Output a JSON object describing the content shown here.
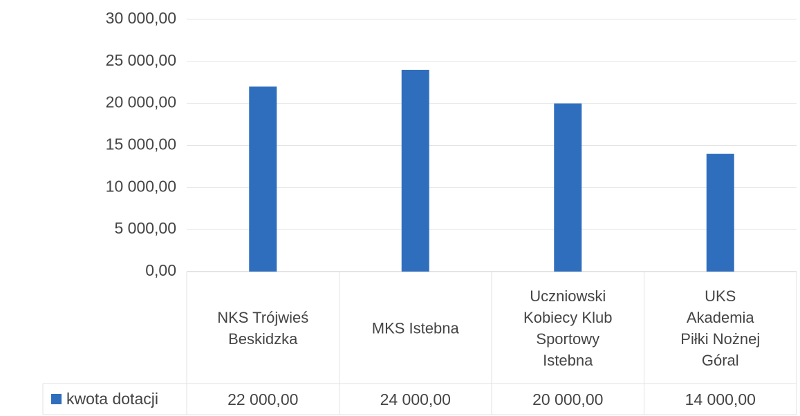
{
  "chart_data": {
    "type": "bar",
    "categories": [
      "NKS Trójwieś Beskidzka",
      "MKS Istebna",
      "Uczniowski Kobiecy Klub Sportowy Istebna",
      "UKS Akademia Piłki Nożnej Góral"
    ],
    "series": [
      {
        "name": "kwota dotacji",
        "color": "#2f6ebd",
        "values": [
          22000,
          24000,
          20000,
          14000
        ],
        "value_labels": [
          "22 000,00",
          "24 000,00",
          "20 000,00",
          "14 000,00"
        ]
      }
    ],
    "ylim": [
      0,
      30000
    ],
    "yticks": [
      {
        "value": 0,
        "label": "0,00"
      },
      {
        "value": 5000,
        "label": "5 000,00"
      },
      {
        "value": 10000,
        "label": "10 000,00"
      },
      {
        "value": 15000,
        "label": "15 000,00"
      },
      {
        "value": 20000,
        "label": "20 000,00"
      },
      {
        "value": 25000,
        "label": "25 000,00"
      },
      {
        "value": 30000,
        "label": "30 000,00"
      }
    ],
    "grid": true,
    "data_table": true
  }
}
